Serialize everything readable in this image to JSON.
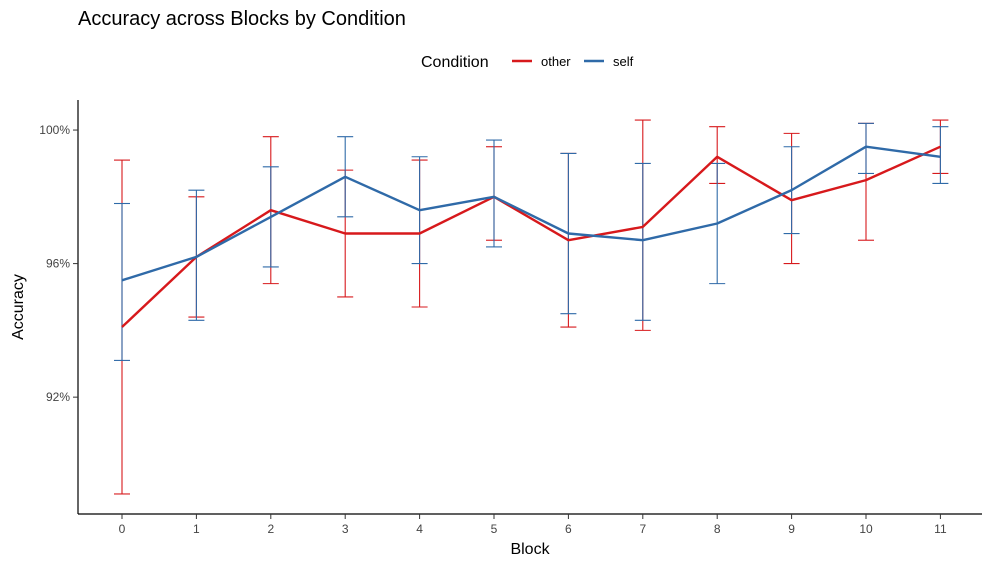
{
  "chart_data": {
    "type": "line",
    "title": "Accuracy across Blocks by Condition",
    "xlabel": "Block",
    "ylabel": "Accuracy",
    "x": [
      0,
      1,
      2,
      3,
      4,
      5,
      6,
      7,
      8,
      9,
      10,
      11
    ],
    "xticks": [
      "0",
      "1",
      "2",
      "3",
      "4",
      "5",
      "6",
      "7",
      "8",
      "9",
      "10",
      "11"
    ],
    "yticks": [
      92,
      96,
      100
    ],
    "ytick_labels": [
      "92%",
      "96%",
      "100%"
    ],
    "ylim": [
      88.5,
      100.9
    ],
    "legend": {
      "title": "Condition",
      "placement": "top"
    },
    "grid": false,
    "series": [
      {
        "name": "other",
        "color": "#d7191c",
        "values": [
          94.1,
          96.2,
          97.6,
          96.9,
          96.9,
          98.0,
          96.7,
          97.1,
          99.2,
          97.9,
          98.5,
          99.5
        ],
        "err_low": [
          89.1,
          94.4,
          95.4,
          95.0,
          94.7,
          96.7,
          94.1,
          94.0,
          98.4,
          96.0,
          96.7,
          98.7
        ],
        "err_high": [
          99.1,
          98.0,
          99.8,
          98.8,
          99.1,
          99.5,
          99.3,
          100.3,
          100.1,
          99.9,
          100.2,
          100.3
        ]
      },
      {
        "name": "self",
        "color": "#2f6aa8",
        "values": [
          95.5,
          96.2,
          97.4,
          98.6,
          97.6,
          98.0,
          96.9,
          96.7,
          97.2,
          98.2,
          99.5,
          99.2
        ],
        "err_low": [
          93.1,
          94.3,
          95.9,
          97.4,
          96.0,
          96.5,
          94.5,
          94.3,
          95.4,
          96.9,
          98.7,
          98.4
        ],
        "err_high": [
          97.8,
          98.2,
          98.9,
          99.8,
          99.2,
          99.7,
          99.3,
          99.0,
          99.0,
          99.5,
          100.2,
          100.1
        ]
      }
    ]
  }
}
